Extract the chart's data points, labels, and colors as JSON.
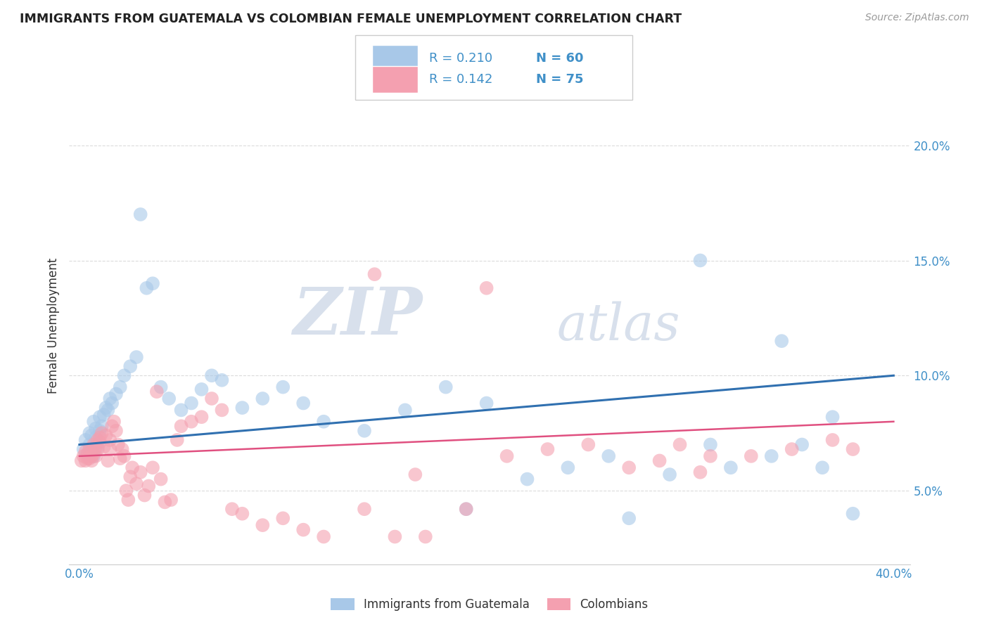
{
  "title": "IMMIGRANTS FROM GUATEMALA VS COLOMBIAN FEMALE UNEMPLOYMENT CORRELATION CHART",
  "source": "Source: ZipAtlas.com",
  "ylabel": "Female Unemployment",
  "legend_r1": "R = 0.210",
  "legend_n1": "N = 60",
  "legend_r2": "R = 0.142",
  "legend_n2": "N = 75",
  "color_blue": "#a8c8e8",
  "color_pink": "#f4a0b0",
  "color_line_blue": "#3070b0",
  "color_line_pink": "#e05080",
  "color_text_blue": "#4090c8",
  "watermark_zip": "ZIP",
  "watermark_atlas": "atlas",
  "bg_color": "#ffffff",
  "grid_color": "#d8d8d8",
  "blue_x": [
    0.002,
    0.003,
    0.004,
    0.005,
    0.005,
    0.006,
    0.006,
    0.007,
    0.007,
    0.008,
    0.008,
    0.009,
    0.009,
    0.01,
    0.01,
    0.011,
    0.012,
    0.013,
    0.014,
    0.015,
    0.016,
    0.018,
    0.02,
    0.022,
    0.025,
    0.028,
    0.03,
    0.033,
    0.036,
    0.04,
    0.044,
    0.05,
    0.055,
    0.06,
    0.065,
    0.07,
    0.08,
    0.09,
    0.1,
    0.11,
    0.12,
    0.14,
    0.16,
    0.18,
    0.2,
    0.22,
    0.24,
    0.26,
    0.29,
    0.31,
    0.32,
    0.34,
    0.355,
    0.365,
    0.38,
    0.19,
    0.27,
    0.305,
    0.345,
    0.37
  ],
  "blue_y": [
    0.068,
    0.072,
    0.066,
    0.075,
    0.07,
    0.068,
    0.074,
    0.08,
    0.065,
    0.073,
    0.077,
    0.071,
    0.069,
    0.076,
    0.082,
    0.078,
    0.083,
    0.086,
    0.085,
    0.09,
    0.088,
    0.092,
    0.095,
    0.1,
    0.104,
    0.108,
    0.17,
    0.138,
    0.14,
    0.095,
    0.09,
    0.085,
    0.088,
    0.094,
    0.1,
    0.098,
    0.086,
    0.09,
    0.095,
    0.088,
    0.08,
    0.076,
    0.085,
    0.095,
    0.088,
    0.055,
    0.06,
    0.065,
    0.057,
    0.07,
    0.06,
    0.065,
    0.07,
    0.06,
    0.04,
    0.042,
    0.038,
    0.15,
    0.115,
    0.082
  ],
  "pink_x": [
    0.001,
    0.002,
    0.003,
    0.003,
    0.004,
    0.004,
    0.005,
    0.005,
    0.006,
    0.006,
    0.007,
    0.007,
    0.008,
    0.008,
    0.009,
    0.009,
    0.01,
    0.01,
    0.011,
    0.012,
    0.013,
    0.014,
    0.015,
    0.015,
    0.016,
    0.017,
    0.018,
    0.019,
    0.02,
    0.021,
    0.022,
    0.023,
    0.024,
    0.025,
    0.026,
    0.028,
    0.03,
    0.032,
    0.034,
    0.036,
    0.038,
    0.04,
    0.042,
    0.045,
    0.048,
    0.05,
    0.055,
    0.06,
    0.065,
    0.07,
    0.075,
    0.08,
    0.09,
    0.1,
    0.11,
    0.12,
    0.14,
    0.155,
    0.17,
    0.19,
    0.2,
    0.21,
    0.23,
    0.25,
    0.27,
    0.295,
    0.31,
    0.33,
    0.35,
    0.37,
    0.38,
    0.285,
    0.305,
    0.145,
    0.165
  ],
  "pink_y": [
    0.063,
    0.065,
    0.067,
    0.063,
    0.064,
    0.066,
    0.068,
    0.064,
    0.065,
    0.063,
    0.07,
    0.066,
    0.069,
    0.065,
    0.072,
    0.068,
    0.071,
    0.073,
    0.075,
    0.069,
    0.074,
    0.063,
    0.068,
    0.072,
    0.078,
    0.08,
    0.076,
    0.07,
    0.064,
    0.068,
    0.065,
    0.05,
    0.046,
    0.056,
    0.06,
    0.053,
    0.058,
    0.048,
    0.052,
    0.06,
    0.093,
    0.055,
    0.045,
    0.046,
    0.072,
    0.078,
    0.08,
    0.082,
    0.09,
    0.085,
    0.042,
    0.04,
    0.035,
    0.038,
    0.033,
    0.03,
    0.042,
    0.03,
    0.03,
    0.042,
    0.138,
    0.065,
    0.068,
    0.07,
    0.06,
    0.07,
    0.065,
    0.065,
    0.068,
    0.072,
    0.068,
    0.063,
    0.058,
    0.144,
    0.057
  ],
  "ylim_min": 0.018,
  "ylim_max": 0.225,
  "xlim_min": -0.005,
  "xlim_max": 0.408
}
